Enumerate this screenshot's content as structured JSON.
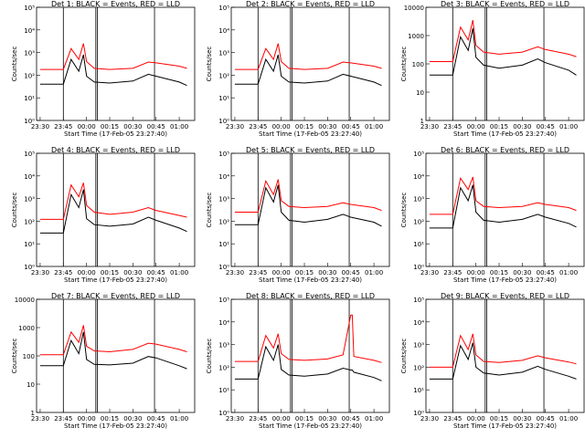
{
  "chart_data": {
    "type": "line",
    "layout": "3x3 grid of small multiples",
    "x_ticks": [
      "23:30",
      "23:45",
      "00:00",
      "00:15",
      "00:30",
      "00:45",
      "01:00"
    ],
    "xlabel": "Start Time (17-Feb-05 23:27:40)",
    "ylabel": "Counts/sec",
    "series_names": [
      "Events",
      "LLD"
    ],
    "colors": {
      "events": "#000000",
      "lld": "#ff0000",
      "frame": "#000000"
    },
    "panels": [
      {
        "title": "Det 1: BLACK = Events, RED = LLD",
        "y_ticks": [
          "10⁰",
          "10¹",
          "10²",
          "10³",
          "10⁴",
          "10⁵"
        ],
        "ylim_log10": [
          0,
          5
        ],
        "x": [
          "23:30",
          "23:45",
          "23:50",
          "23:55",
          "23:58",
          "00:00",
          "00:05",
          "00:15",
          "00:30",
          "00:40",
          "00:45",
          "01:00",
          "01:05"
        ],
        "lld": [
          180,
          180,
          1500,
          500,
          2500,
          400,
          200,
          180,
          200,
          380,
          350,
          250,
          200
        ],
        "events": [
          40,
          40,
          500,
          150,
          800,
          90,
          50,
          45,
          55,
          110,
          90,
          50,
          35
        ]
      },
      {
        "title": "Det 2: BLACK = Events, RED = LLD",
        "y_ticks": [
          "10⁰",
          "10¹",
          "10²",
          "10³",
          "10⁴",
          "10⁵"
        ],
        "ylim_log10": [
          0,
          5
        ],
        "x": [
          "23:30",
          "23:45",
          "23:50",
          "23:55",
          "23:58",
          "00:00",
          "00:05",
          "00:15",
          "00:30",
          "00:40",
          "00:45",
          "01:00",
          "01:05"
        ],
        "lld": [
          180,
          180,
          1500,
          500,
          2500,
          400,
          200,
          180,
          200,
          380,
          350,
          250,
          200
        ],
        "events": [
          40,
          40,
          500,
          150,
          800,
          90,
          50,
          45,
          55,
          110,
          90,
          50,
          35
        ]
      },
      {
        "title": "Det 3: BLACK = Events, RED = LLD",
        "y_ticks": [
          "1",
          "10",
          "100",
          "1000",
          "10000"
        ],
        "ylim_log10": [
          0,
          4
        ],
        "x": [
          "23:30",
          "23:45",
          "23:50",
          "23:55",
          "23:58",
          "00:00",
          "00:05",
          "00:15",
          "00:30",
          "00:40",
          "00:45",
          "01:00",
          "01:05"
        ],
        "lld": [
          120,
          120,
          2000,
          700,
          3500,
          450,
          260,
          220,
          260,
          400,
          320,
          220,
          180
        ],
        "events": [
          40,
          40,
          900,
          300,
          1800,
          170,
          90,
          70,
          90,
          150,
          110,
          60,
          40
        ]
      },
      {
        "title": "Det 4: BLACK = Events, RED = LLD",
        "y_ticks": [
          "10⁰",
          "10¹",
          "10²",
          "10³",
          "10⁴",
          "10⁵"
        ],
        "ylim_log10": [
          0,
          5
        ],
        "x": [
          "23:30",
          "23:45",
          "23:50",
          "23:55",
          "23:58",
          "00:00",
          "00:05",
          "00:15",
          "00:30",
          "00:40",
          "00:45",
          "01:00",
          "01:05"
        ],
        "lld": [
          120,
          120,
          4000,
          1200,
          5000,
          500,
          250,
          200,
          250,
          400,
          300,
          180,
          150
        ],
        "events": [
          30,
          30,
          1500,
          400,
          2500,
          130,
          70,
          60,
          75,
          150,
          110,
          50,
          35
        ]
      },
      {
        "title": "Det 5: BLACK = Events, RED = LLD",
        "y_ticks": [
          "10⁰",
          "10¹",
          "10²",
          "10³",
          "10⁴",
          "10⁵"
        ],
        "ylim_log10": [
          0,
          5
        ],
        "x": [
          "23:30",
          "23:45",
          "23:50",
          "23:55",
          "23:58",
          "00:00",
          "00:05",
          "00:15",
          "00:30",
          "00:40",
          "00:45",
          "01:00",
          "01:05"
        ],
        "lld": [
          250,
          250,
          6000,
          1500,
          7000,
          800,
          450,
          400,
          450,
          650,
          550,
          400,
          300
        ],
        "events": [
          70,
          70,
          3000,
          700,
          4000,
          250,
          110,
          90,
          120,
          200,
          150,
          90,
          60
        ]
      },
      {
        "title": "Det 6: BLACK = Events, RED = LLD",
        "y_ticks": [
          "10⁰",
          "10¹",
          "10²",
          "10³",
          "10⁴",
          "10⁵"
        ],
        "ylim_log10": [
          0,
          5
        ],
        "x": [
          "23:30",
          "23:45",
          "23:50",
          "23:55",
          "23:58",
          "00:00",
          "00:05",
          "00:15",
          "00:30",
          "00:40",
          "00:45",
          "01:00",
          "01:05"
        ],
        "lld": [
          200,
          200,
          8000,
          2500,
          9000,
          800,
          450,
          400,
          450,
          650,
          550,
          400,
          300
        ],
        "events": [
          50,
          50,
          3000,
          800,
          4000,
          250,
          110,
          90,
          120,
          200,
          150,
          80,
          55
        ]
      },
      {
        "title": "Det 7: BLACK = Events, RED = LLD",
        "y_ticks": [
          "1",
          "10",
          "100",
          "1000",
          "10000"
        ],
        "ylim_log10": [
          0,
          4
        ],
        "x": [
          "23:30",
          "23:45",
          "23:50",
          "23:55",
          "23:58",
          "00:00",
          "00:05",
          "00:15",
          "00:30",
          "00:40",
          "00:45",
          "01:00",
          "01:05"
        ],
        "lld": [
          110,
          110,
          700,
          300,
          1200,
          220,
          150,
          140,
          170,
          280,
          260,
          170,
          140
        ],
        "events": [
          45,
          45,
          350,
          120,
          700,
          75,
          50,
          48,
          55,
          95,
          85,
          45,
          35
        ]
      },
      {
        "title": "Det 8: BLACK = Events, RED = LLD",
        "y_ticks": [
          "10⁰",
          "10¹",
          "10²",
          "10³",
          "10⁴",
          "10⁵"
        ],
        "ylim_log10": [
          0,
          5
        ],
        "x": [
          "23:30",
          "23:45",
          "23:50",
          "23:55",
          "23:58",
          "00:00",
          "00:05",
          "00:15",
          "00:30",
          "00:40",
          "00:45",
          "00:46",
          "00:47",
          "01:00",
          "01:05"
        ],
        "lld": [
          180,
          180,
          2500,
          700,
          3000,
          400,
          220,
          200,
          230,
          350,
          20000,
          20000,
          300,
          200,
          160
        ],
        "events": [
          30,
          30,
          800,
          200,
          1000,
          80,
          45,
          40,
          50,
          90,
          75,
          75,
          60,
          35,
          25
        ]
      },
      {
        "title": "Det 9: BLACK = Events, RED = LLD",
        "y_ticks": [
          "10⁰",
          "10¹",
          "10²",
          "10³",
          "10⁴",
          "10⁵"
        ],
        "ylim_log10": [
          0,
          5
        ],
        "x": [
          "23:30",
          "23:45",
          "23:50",
          "23:55",
          "23:58",
          "00:00",
          "00:05",
          "00:15",
          "00:30",
          "00:40",
          "00:45",
          "01:00",
          "01:05"
        ],
        "lld": [
          100,
          100,
          2500,
          600,
          3000,
          350,
          180,
          160,
          200,
          320,
          260,
          170,
          140
        ],
        "events": [
          30,
          30,
          900,
          220,
          1200,
          100,
          55,
          45,
          60,
          110,
          80,
          40,
          30
        ]
      }
    ]
  }
}
